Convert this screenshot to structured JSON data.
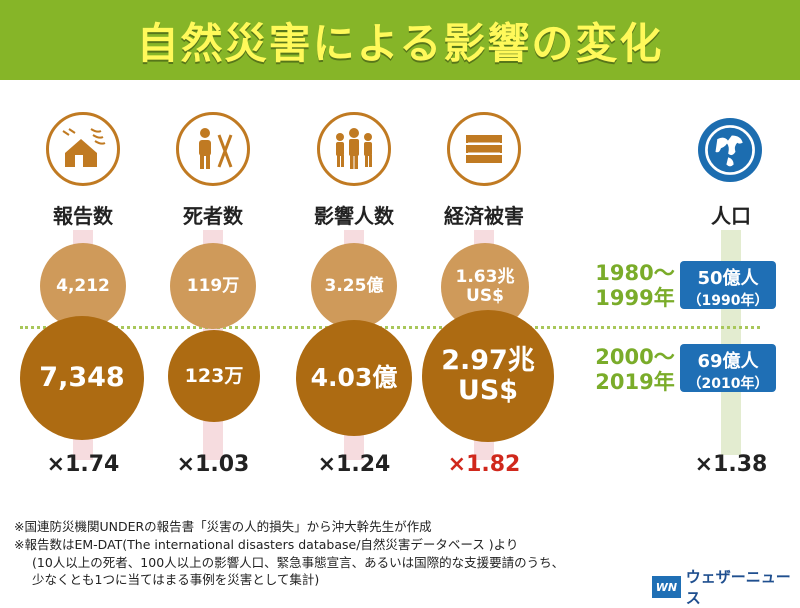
{
  "title": "自然災害による影響の変化",
  "columns": [
    {
      "label": "報告数",
      "icon": "house-storm-icon",
      "old": "4,212",
      "new": "7,348",
      "mult": "×1.74",
      "highlight": false
    },
    {
      "label": "死者数",
      "icon": "person-death-icon",
      "old": "119万",
      "new": "123万",
      "mult": "×1.03",
      "highlight": false
    },
    {
      "label": "影響人数",
      "icon": "people-icon",
      "old": "3.25億",
      "new": "4.03億",
      "mult": "×1.24",
      "highlight": false
    },
    {
      "label": "経済被害",
      "icon": "money-stack-icon",
      "old_l1": "1.63兆",
      "old_l2": "US$",
      "new_l1": "2.97兆",
      "new_l2": "US$",
      "mult": "×1.82",
      "highlight": true
    }
  ],
  "population": {
    "label": "人口",
    "icon": "globe-icon",
    "old_main": "50億人",
    "old_sub": "（1990年）",
    "new_main": "69億人",
    "new_sub": "（2010年）",
    "mult": "×1.38"
  },
  "periods": {
    "old_l1": "1980〜",
    "old_l2": "1999年",
    "new_l1": "2000〜",
    "new_l2": "2019年"
  },
  "notes": [
    "※国連防災機関UNDERの報告書「災害の人的損失」から沖大幹先生が作成",
    "※報告数はEM-DAT(The international disasters database/自然災害データベース )より",
    "(10人以上の死者、100人以上の影響人口、緊急事態宣言、あるいは国際的な支援要請のうち、",
    "少なくとも1つに当てはまる事例を災害として集計)"
  ],
  "logo": {
    "mark": "WN",
    "text": "ウェザーニュース"
  },
  "colors": {
    "header": "#86b528",
    "title": "#fff95a",
    "old_circle": "#cf9a5a",
    "new_circle": "#ad6b12",
    "period": "#7aac2a",
    "pop_box": "#1f6fb5",
    "highlight": "#d0281c"
  }
}
